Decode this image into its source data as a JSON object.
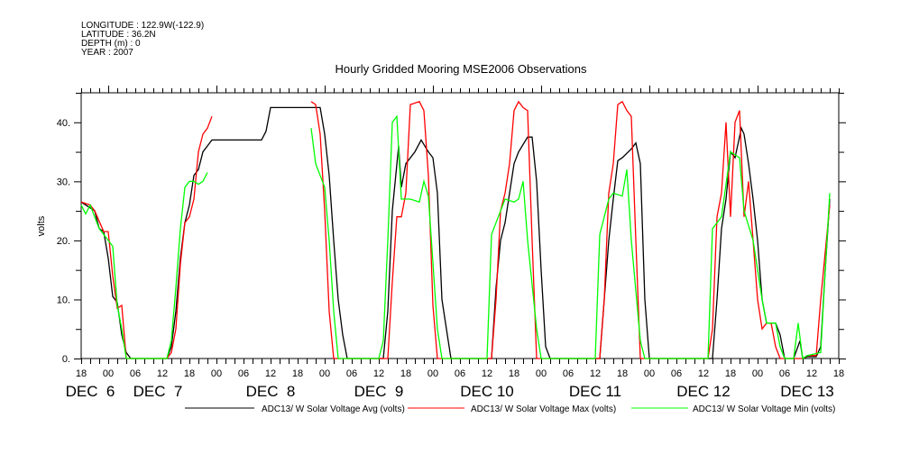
{
  "header": {
    "meta_lines": [
      "LONGITUDE : 122.9W(-122.9)",
      "LATITUDE : 36.2N",
      "DEPTH (m) : 0",
      "YEAR : 2007"
    ]
  },
  "chart_data": {
    "type": "line",
    "title": "Hourly Gridded Mooring MSE2006 Observations",
    "xlabel": "",
    "ylabel": "volts",
    "x_units": "hours since DEC 6 18:00",
    "xlim": [
      0,
      168
    ],
    "ylim": [
      0,
      45
    ],
    "y_ticks": [
      0,
      10,
      20,
      30,
      40
    ],
    "y_tick_labels": [
      "0.",
      "10.",
      "20.",
      "30.",
      "40."
    ],
    "x_hour_ticks": [
      0,
      6,
      12,
      18,
      24,
      30,
      36,
      42,
      48,
      54,
      60,
      66,
      72,
      78,
      84,
      90,
      96,
      102,
      108,
      114,
      120,
      126,
      132,
      138,
      144,
      150,
      156,
      162,
      168
    ],
    "x_hour_labels": [
      "18",
      "00",
      "06",
      "12",
      "18",
      "00",
      "06",
      "12",
      "18",
      "00",
      "06",
      "12",
      "18",
      "00",
      "06",
      "12",
      "18",
      "00",
      "06",
      "12",
      "18",
      "00",
      "06",
      "12",
      "18",
      "00",
      "06",
      "12",
      "18"
    ],
    "date_labels": [
      {
        "label": "DEC  6",
        "at": 2
      },
      {
        "label": "DEC  7",
        "at": 17
      },
      {
        "label": "DEC  8",
        "at": 42
      },
      {
        "label": "DEC  9",
        "at": 66
      },
      {
        "label": "DEC 10",
        "at": 90
      },
      {
        "label": "DEC 11",
        "at": 114
      },
      {
        "label": "DEC 12",
        "at": 138
      },
      {
        "label": "DEC 13",
        "at": 161
      }
    ],
    "legend_position": "bottom",
    "series": [
      {
        "name": "ADC13/ W Solar Voltage Avg (volts)",
        "color": "#000000",
        "points": [
          [
            0,
            26.5
          ],
          [
            2,
            25.5
          ],
          [
            3,
            25
          ],
          [
            4,
            22
          ],
          [
            5,
            21.5
          ],
          [
            6,
            17
          ],
          [
            7,
            10.5
          ],
          [
            8,
            9.5
          ],
          [
            9,
            4
          ],
          [
            10,
            1
          ],
          [
            11,
            0
          ],
          [
            19,
            0
          ],
          [
            20,
            2
          ],
          [
            21,
            8
          ],
          [
            22,
            17
          ],
          [
            23,
            23
          ],
          [
            24,
            26
          ],
          [
            25,
            31
          ],
          [
            26,
            32
          ],
          [
            27,
            35
          ],
          [
            28,
            36
          ],
          [
            29,
            37
          ],
          [
            40,
            37
          ],
          [
            41,
            38.5
          ],
          [
            42,
            42.5
          ],
          [
            53,
            42.5
          ],
          [
            54,
            38
          ],
          [
            55,
            31
          ],
          [
            56,
            20
          ],
          [
            57,
            10
          ],
          [
            58,
            4
          ],
          [
            59,
            0
          ],
          [
            67,
            0
          ],
          [
            68,
            8
          ],
          [
            69,
            25
          ],
          [
            70.4,
            36
          ],
          [
            71,
            29
          ],
          [
            72,
            33
          ],
          [
            74,
            35
          ],
          [
            75.4,
            37
          ],
          [
            77,
            35
          ],
          [
            78,
            34
          ],
          [
            79,
            28
          ],
          [
            80,
            10
          ],
          [
            82,
            0
          ],
          [
            91,
            0
          ],
          [
            92,
            12
          ],
          [
            93,
            20
          ],
          [
            94,
            23
          ],
          [
            95,
            28
          ],
          [
            96,
            33
          ],
          [
            97,
            35
          ],
          [
            99,
            37.5
          ],
          [
            100,
            37.5
          ],
          [
            101,
            30
          ],
          [
            102,
            15
          ],
          [
            103,
            2
          ],
          [
            104,
            0
          ],
          [
            115,
            0
          ],
          [
            116,
            10
          ],
          [
            117,
            20
          ],
          [
            118,
            27
          ],
          [
            119,
            33.5
          ],
          [
            120,
            34
          ],
          [
            122,
            35.5
          ],
          [
            123,
            36.5
          ],
          [
            124,
            33
          ],
          [
            125,
            10
          ],
          [
            126,
            0
          ],
          [
            140,
            0
          ],
          [
            141,
            10
          ],
          [
            142,
            22
          ],
          [
            143,
            27
          ],
          [
            144,
            35
          ],
          [
            145,
            34
          ],
          [
            146.4,
            39
          ],
          [
            147,
            38
          ],
          [
            148,
            33
          ],
          [
            149,
            27
          ],
          [
            150,
            20
          ],
          [
            151,
            10
          ],
          [
            152,
            6
          ],
          [
            154,
            6
          ],
          [
            155,
            4
          ],
          [
            156,
            0
          ],
          [
            158,
            0
          ],
          [
            159.4,
            3
          ],
          [
            160,
            0
          ],
          [
            161,
            0.3
          ],
          [
            163,
            0.3
          ],
          [
            164,
            2
          ],
          [
            165,
            15
          ],
          [
            166,
            27
          ]
        ]
      },
      {
        "name": "ADC13/ W Solar Voltage Max (volts)",
        "color": "#ff0000",
        "points": [
          [
            0,
            26.5
          ],
          [
            2,
            26
          ],
          [
            3,
            25
          ],
          [
            5,
            21.5
          ],
          [
            6,
            21.5
          ],
          [
            7,
            14
          ],
          [
            8,
            8.5
          ],
          [
            9,
            9
          ],
          [
            10,
            0
          ],
          [
            19,
            0
          ],
          [
            20,
            1
          ],
          [
            21,
            5
          ],
          [
            22,
            16
          ],
          [
            23,
            23
          ],
          [
            24,
            24
          ],
          [
            25,
            27
          ],
          [
            26,
            35
          ],
          [
            27,
            38
          ],
          [
            28,
            39
          ],
          [
            29,
            41
          ],
          null,
          [
            51,
            43.5
          ],
          [
            52,
            43
          ],
          [
            53,
            38
          ],
          [
            54,
            25
          ],
          [
            55,
            8
          ],
          [
            56,
            0
          ],
          [
            68,
            0
          ],
          [
            69,
            13
          ],
          [
            70,
            24
          ],
          [
            71,
            24
          ],
          [
            72,
            28
          ],
          [
            73,
            43
          ],
          [
            75,
            43.5
          ],
          [
            76,
            42
          ],
          [
            77,
            31
          ],
          [
            78,
            9
          ],
          [
            79,
            0
          ],
          [
            91,
            0
          ],
          [
            92,
            10
          ],
          [
            93,
            25
          ],
          [
            94,
            28
          ],
          [
            95,
            33
          ],
          [
            96,
            42
          ],
          [
            97,
            43.5
          ],
          [
            98,
            42.5
          ],
          [
            99,
            42
          ],
          [
            100,
            20
          ],
          [
            101,
            0
          ],
          [
            115,
            0
          ],
          [
            116,
            10
          ],
          [
            117,
            28
          ],
          [
            118,
            33
          ],
          [
            119,
            43
          ],
          [
            120,
            43.5
          ],
          [
            121,
            42
          ],
          [
            122,
            41
          ],
          [
            123,
            20
          ],
          [
            124,
            0
          ],
          [
            139,
            0
          ],
          [
            140,
            5
          ],
          [
            141,
            24
          ],
          [
            142,
            28
          ],
          [
            143,
            40
          ],
          [
            144,
            24
          ],
          [
            145,
            40
          ],
          [
            146,
            42
          ],
          [
            147,
            24
          ],
          [
            148,
            30
          ],
          [
            149,
            20
          ],
          [
            150,
            10
          ],
          [
            151,
            5
          ],
          [
            152,
            6
          ],
          [
            153,
            6
          ],
          [
            154,
            2
          ],
          [
            155,
            0
          ],
          [
            160,
            0
          ],
          [
            161,
            0.5
          ],
          [
            163,
            0.5
          ],
          [
            164,
            10
          ],
          [
            166,
            26
          ]
        ]
      },
      {
        "name": "ADC13/ W Solar Voltage Min (volts)",
        "color": "#00ff00",
        "points": [
          [
            0,
            26
          ],
          [
            1,
            24.5
          ],
          [
            2,
            26
          ],
          [
            4,
            22
          ],
          [
            6,
            20
          ],
          [
            7,
            19
          ],
          [
            8,
            9
          ],
          [
            9,
            5
          ],
          [
            10,
            0
          ],
          [
            19,
            0
          ],
          [
            20,
            3
          ],
          [
            21,
            12
          ],
          [
            22,
            22
          ],
          [
            23,
            29
          ],
          [
            24,
            30
          ],
          [
            25,
            30
          ],
          [
            26,
            29.5
          ],
          [
            27,
            30
          ],
          [
            28,
            31.5
          ],
          null,
          [
            51,
            39
          ],
          [
            52,
            33
          ],
          [
            53,
            31
          ],
          [
            54,
            29
          ],
          [
            55,
            20
          ],
          [
            56,
            8
          ],
          [
            57,
            0
          ],
          [
            66,
            0
          ],
          [
            67,
            3
          ],
          [
            68,
            20
          ],
          [
            69,
            40
          ],
          [
            70,
            41
          ],
          [
            71,
            27
          ],
          [
            73,
            27
          ],
          [
            75,
            26.5
          ],
          [
            76,
            30
          ],
          [
            77,
            27.5
          ],
          [
            79,
            5
          ],
          [
            80,
            0
          ],
          [
            90,
            0
          ],
          [
            91,
            21
          ],
          [
            92,
            23
          ],
          [
            93,
            25
          ],
          [
            94,
            27
          ],
          [
            96,
            26.5
          ],
          [
            97,
            27
          ],
          [
            98,
            30
          ],
          [
            99,
            20
          ],
          [
            101,
            5
          ],
          [
            102,
            0
          ],
          [
            114,
            0
          ],
          [
            115,
            21
          ],
          [
            116,
            24
          ],
          [
            117,
            27
          ],
          [
            118,
            28
          ],
          [
            120,
            27.5
          ],
          [
            121,
            32
          ],
          [
            122,
            20
          ],
          [
            124,
            3
          ],
          [
            125,
            0
          ],
          [
            139,
            0
          ],
          [
            140,
            22
          ],
          [
            142,
            24
          ],
          [
            144,
            35
          ],
          [
            146,
            34
          ],
          [
            147,
            25
          ],
          [
            149,
            20
          ],
          [
            151,
            10
          ],
          [
            152,
            6
          ],
          [
            154,
            6
          ],
          [
            155,
            2
          ],
          [
            156,
            0
          ],
          [
            158,
            0
          ],
          [
            159,
            6
          ],
          [
            160,
            0
          ],
          [
            161,
            0.5
          ],
          [
            164,
            1
          ],
          [
            165,
            15
          ],
          [
            166,
            28
          ]
        ]
      }
    ]
  }
}
